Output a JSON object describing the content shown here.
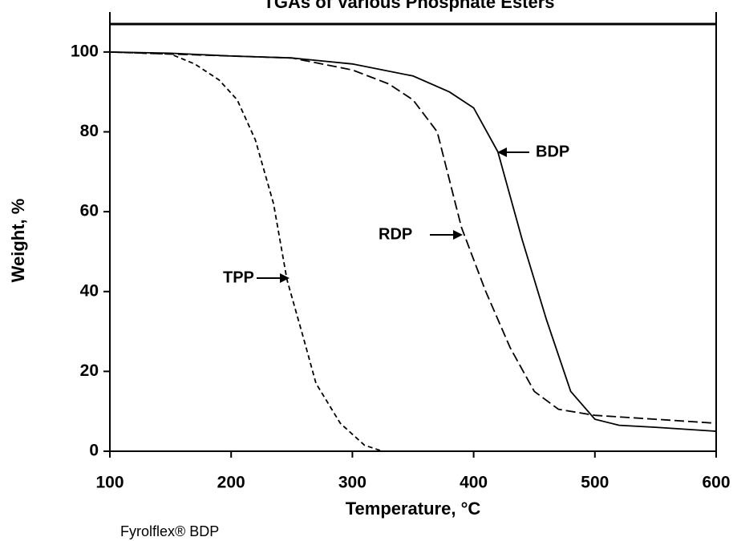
{
  "chart_data": {
    "type": "line",
    "title": "TGAs of Various Phosphate Esters",
    "x_label": "Temperature, °C",
    "y_label": "Weight, %",
    "footer": "Fyrolflex® BDP",
    "xlim": [
      100,
      600
    ],
    "ylim": [
      0,
      107
    ],
    "xticks": [
      100,
      200,
      300,
      400,
      500,
      600
    ],
    "yticks": [
      0,
      20,
      40,
      60,
      80,
      100
    ],
    "series": [
      {
        "name": "BDP",
        "color": "#000000",
        "line_style": "solid",
        "x": [
          100,
          150,
          200,
          250,
          300,
          350,
          380,
          400,
          420,
          440,
          460,
          480,
          500,
          520,
          550,
          600
        ],
        "values": [
          100,
          99.7,
          99,
          98.5,
          97,
          94,
          90,
          86,
          75,
          53,
          33,
          15,
          8,
          6.5,
          6,
          5
        ]
      },
      {
        "name": "RDP",
        "color": "#000000",
        "line_style": "long-dash",
        "x": [
          100,
          200,
          250,
          300,
          330,
          350,
          370,
          385,
          390,
          410,
          430,
          450,
          470,
          500,
          550,
          600
        ],
        "values": [
          100,
          99,
          98.5,
          95.5,
          92,
          88,
          80,
          62,
          56,
          40,
          26,
          15,
          10.5,
          9,
          8,
          7
        ]
      },
      {
        "name": "TPP",
        "color": "#000000",
        "line_style": "short-dash",
        "x": [
          100,
          150,
          170,
          190,
          205,
          220,
          235,
          246,
          260,
          270,
          290,
          310,
          325,
          600
        ],
        "values": [
          100,
          99.5,
          97,
          93,
          88,
          78,
          62,
          43,
          28,
          17,
          7,
          1.5,
          0,
          0
        ]
      }
    ]
  }
}
